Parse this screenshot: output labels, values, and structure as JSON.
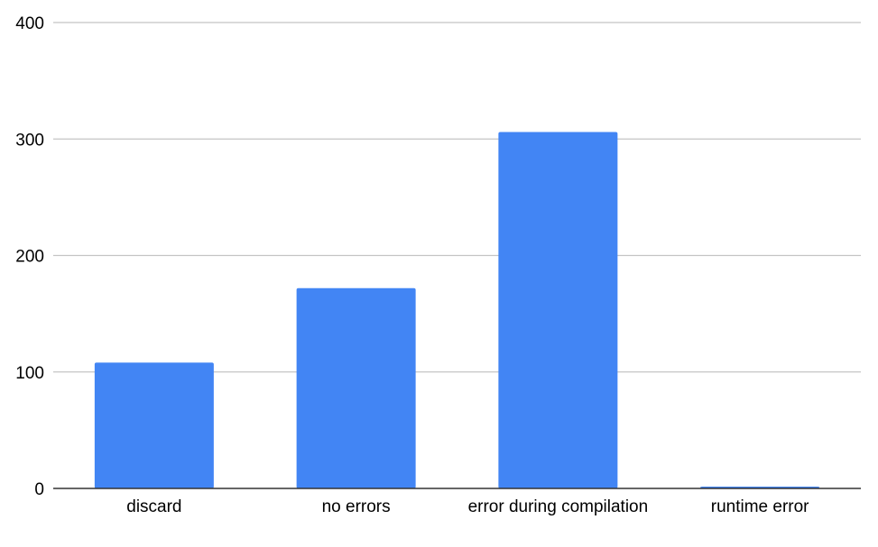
{
  "chart_data": {
    "type": "bar",
    "title": "",
    "xlabel": "",
    "ylabel": "",
    "categories": [
      "discard",
      "no errors",
      "error during compilation",
      "runtime error"
    ],
    "values": [
      108,
      172,
      306,
      1
    ],
    "ylim": [
      0,
      400
    ],
    "yticks": [
      0,
      100,
      200,
      300,
      400
    ],
    "ytick_labels": [
      "0",
      "100",
      "200",
      "300",
      "400"
    ],
    "grid": true,
    "legend": "none",
    "colors": {
      "bar": "#4285f4",
      "grid": "#c4c4c4",
      "axis": "#333333",
      "text": "#000000"
    }
  }
}
